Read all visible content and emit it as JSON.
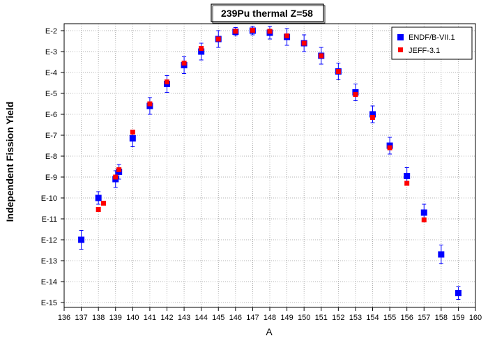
{
  "chart_data": {
    "type": "scatter",
    "title": "239Pu thermal Z=58",
    "xlabel": "A",
    "ylabel": "Independent Fission Yield",
    "xlim": [
      136,
      160
    ],
    "ylim_exponent": [
      -15,
      -2
    ],
    "y_scale": "log",
    "grid": true,
    "legend_position": "top-right",
    "x_ticks": [
      136,
      137,
      138,
      139,
      140,
      141,
      142,
      143,
      144,
      145,
      146,
      147,
      148,
      149,
      150,
      151,
      152,
      153,
      154,
      155,
      156,
      157,
      158,
      159,
      160
    ],
    "y_tick_labels": [
      {
        "exp": -2,
        "label": "E-2"
      },
      {
        "exp": -3,
        "label": "E-3"
      },
      {
        "exp": -4,
        "label": "E-4"
      },
      {
        "exp": -5,
        "label": "E-5"
      },
      {
        "exp": -6,
        "label": "E-6"
      },
      {
        "exp": -7,
        "label": "E-7"
      },
      {
        "exp": -8,
        "label": "E-8"
      },
      {
        "exp": -9,
        "label": "E-9"
      },
      {
        "exp": -10,
        "label": "E-10"
      },
      {
        "exp": -11,
        "label": "E-11"
      },
      {
        "exp": -12,
        "label": "E-12"
      },
      {
        "exp": -13,
        "label": "E-13"
      },
      {
        "exp": -14,
        "label": "E-14"
      },
      {
        "exp": -15,
        "label": "E-15"
      }
    ],
    "series": [
      {
        "name": "ENDF/B-VII.1",
        "color": "#0000ff",
        "marker": "square",
        "points": [
          {
            "x": 137,
            "y": -12.0,
            "err": 0.45
          },
          {
            "x": 138,
            "y": -10.0,
            "err": 0.3
          },
          {
            "x": 139,
            "y": -9.1,
            "err": 0.4
          },
          {
            "x": 139.2,
            "y": -8.75,
            "err": 0.35
          },
          {
            "x": 140,
            "y": -7.15,
            "err": 0.4
          },
          {
            "x": 141,
            "y": -5.6,
            "err": 0.4
          },
          {
            "x": 142,
            "y": -4.55,
            "err": 0.4
          },
          {
            "x": 143,
            "y": -3.65,
            "err": 0.4
          },
          {
            "x": 144,
            "y": -3.0,
            "err": 0.4
          },
          {
            "x": 145,
            "y": -2.4,
            "err": 0.4
          },
          {
            "x": 146,
            "y": -2.05,
            "err": 0.2
          },
          {
            "x": 147,
            "y": -2.0,
            "err": 0.2
          },
          {
            "x": 148,
            "y": -2.1,
            "err": 0.3
          },
          {
            "x": 149,
            "y": -2.3,
            "err": 0.4
          },
          {
            "x": 150,
            "y": -2.6,
            "err": 0.4
          },
          {
            "x": 151,
            "y": -3.2,
            "err": 0.4
          },
          {
            "x": 152,
            "y": -3.95,
            "err": 0.4
          },
          {
            "x": 153,
            "y": -4.95,
            "err": 0.4
          },
          {
            "x": 154,
            "y": -6.0,
            "err": 0.4
          },
          {
            "x": 155,
            "y": -7.5,
            "err": 0.4
          },
          {
            "x": 156,
            "y": -8.95,
            "err": 0.4
          },
          {
            "x": 157,
            "y": -10.7,
            "err": 0.4
          },
          {
            "x": 158,
            "y": -12.7,
            "err": 0.45
          },
          {
            "x": 159,
            "y": -14.55,
            "err": 0.3
          }
        ]
      },
      {
        "name": "JEFF-3.1",
        "color": "#ff0000",
        "marker": "square",
        "points": [
          {
            "x": 138,
            "y": -10.55
          },
          {
            "x": 138.3,
            "y": -10.25
          },
          {
            "x": 139,
            "y": -9.0
          },
          {
            "x": 139.2,
            "y": -8.65
          },
          {
            "x": 140,
            "y": -6.85
          },
          {
            "x": 141,
            "y": -5.5
          },
          {
            "x": 142,
            "y": -4.45
          },
          {
            "x": 143,
            "y": -3.55
          },
          {
            "x": 144,
            "y": -2.85
          },
          {
            "x": 145,
            "y": -2.4
          },
          {
            "x": 146,
            "y": -2.03
          },
          {
            "x": 147,
            "y": -1.98
          },
          {
            "x": 148,
            "y": -2.03
          },
          {
            "x": 149,
            "y": -2.25
          },
          {
            "x": 150,
            "y": -2.6
          },
          {
            "x": 151,
            "y": -3.2
          },
          {
            "x": 152,
            "y": -3.95
          },
          {
            "x": 153,
            "y": -5.05
          },
          {
            "x": 154,
            "y": -6.15
          },
          {
            "x": 155,
            "y": -7.6
          },
          {
            "x": 156,
            "y": -9.3
          },
          {
            "x": 157,
            "y": -11.05
          }
        ]
      }
    ]
  }
}
